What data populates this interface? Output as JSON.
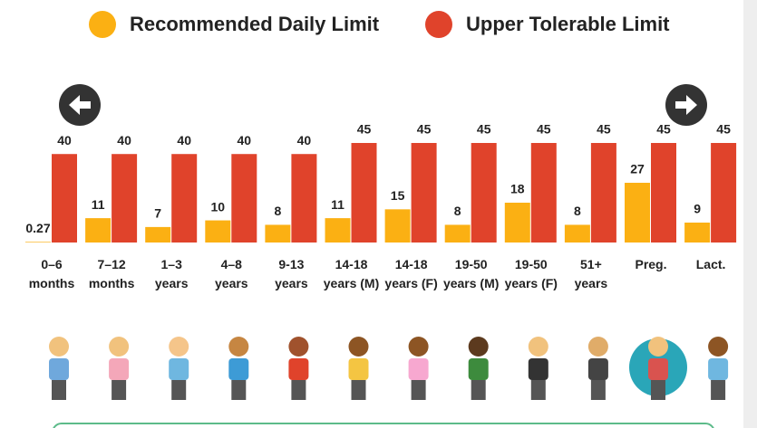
{
  "chart_data": {
    "type": "bar",
    "categories": [
      "0–6 months",
      "7–12 months",
      "1–3 years",
      "4–8 years",
      "9-13 years",
      "14-18 years (M)",
      "14-18 years (F)",
      "19-50 years (M)",
      "19-50 years (F)",
      "51+ years",
      "Preg.",
      "Lact."
    ],
    "series": [
      {
        "name": "Recommended Daily Limit",
        "color": "#fbb013",
        "values": [
          0.27,
          11,
          7,
          10,
          8,
          11,
          15,
          8,
          18,
          8,
          27,
          9
        ]
      },
      {
        "name": "Upper Tolerable Limit",
        "color": "#e0432b",
        "values": [
          40,
          40,
          40,
          40,
          40,
          45,
          45,
          45,
          45,
          45,
          45,
          45
        ]
      }
    ]
  }
}
